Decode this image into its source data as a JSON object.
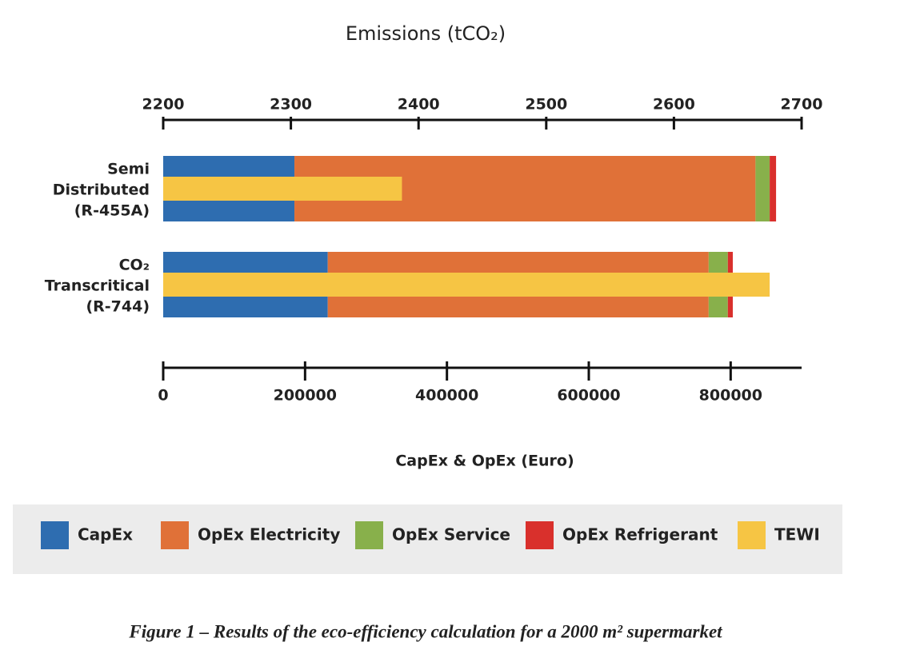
{
  "chart_data": {
    "type": "stacked-barh",
    "title": "Emissions (tCO₂)",
    "xlabel": "CapEx & OpEx (Euro)",
    "caption": "Figure 1 – Results of the eco-efficiency calculation for a 2000 m² supermarket",
    "categories": [
      [
        "Semi",
        "Distributed",
        "(R-455A)"
      ],
      [
        "CO₂",
        "Transcritical",
        "(R-744)"
      ]
    ],
    "xlim": [
      0,
      900000
    ],
    "xticks": [
      0,
      200000,
      400000,
      600000,
      800000
    ],
    "x2lim": [
      2200,
      2700
    ],
    "x2ticks": [
      2200,
      2300,
      2400,
      2500,
      2600,
      2700
    ],
    "series": [
      {
        "name": "CapEx",
        "color": "#2e6db0",
        "values": [
          185000,
          232000
        ]
      },
      {
        "name": "OpEx Electricity",
        "color": "#e07138",
        "values": [
          650000,
          537000
        ]
      },
      {
        "name": "OpEx Service",
        "color": "#88b04b",
        "values": [
          20000,
          27000
        ]
      },
      {
        "name": "OpEx Refrigerant",
        "color": "#d9302c",
        "values": [
          9000,
          7000
        ]
      },
      {
        "name": "TEWI",
        "color": "#f6c544",
        "values": [
          2387,
          2675
        ],
        "axis": "x2"
      }
    ]
  }
}
